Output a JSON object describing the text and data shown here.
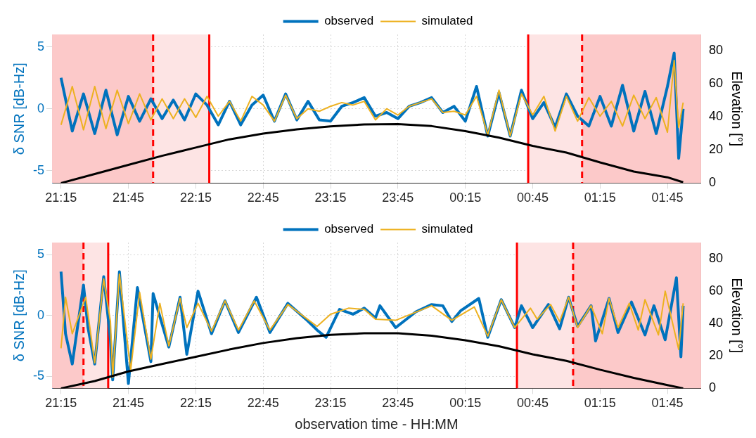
{
  "chart_data": [
    {
      "type": "line",
      "ylabel": "δ SNR [dB-Hz]",
      "y2label": "Elevation [°]",
      "x": [
        "--01-01T21:15",
        "--01-01T21:20",
        "--01-01T21:25",
        "--01-01T21:30",
        "--01-01T21:35",
        "--01-01T21:40",
        "--01-01T21:45",
        "--01-01T21:50",
        "--01-01T21:55",
        "--01-01T22:00",
        "--01-01T22:05",
        "--01-01T22:10",
        "--01-01T22:15",
        "--01-01T22:20",
        "--01-01T22:25",
        "--01-01T22:30",
        "--01-01T22:35",
        "--01-01T22:40",
        "--01-01T22:45",
        "--01-01T22:50",
        "--01-01T22:55",
        "--01-01T23:00",
        "--01-01T23:05",
        "--01-01T23:10",
        "--01-01T23:15",
        "--01-01T23:20",
        "--01-01T23:25",
        "--01-01T23:30",
        "--01-01T23:35",
        "--01-01T23:40",
        "--01-01T23:45",
        "--01-01T23:50",
        "--01-01T23:55",
        "--01-02T00:00",
        "--01-02T00:05",
        "--01-02T00:10",
        "--01-02T00:15",
        "--01-02T00:20",
        "--01-02T00:25",
        "--01-02T00:30",
        "--01-02T00:35",
        "--01-02T00:40",
        "--01-02T00:45",
        "--01-02T00:50",
        "--01-02T00:55",
        "--01-02T01:00",
        "--01-02T01:05",
        "--01-02T01:10",
        "--01-02T01:15",
        "--01-02T01:20",
        "--01-02T01:25",
        "--01-02T01:30",
        "--01-02T01:35",
        "--01-02T01:40",
        "--01-02T01:45",
        "--01-02T01:48",
        "--01-02T01:50",
        "--01-02T01:52"
      ],
      "series": [
        {
          "name": "observed",
          "color": "#0072bd",
          "values": [
            2.5,
            -1.8,
            1.2,
            -2.0,
            1.5,
            -2.1,
            1.0,
            -1.0,
            0.8,
            -0.8,
            0.7,
            -0.9,
            1.2,
            0.3,
            -1.3,
            0.6,
            -1.3,
            0.3,
            1.1,
            -1.0,
            1.2,
            -0.9,
            0.6,
            -0.9,
            -1.0,
            0.2,
            0.5,
            0.9,
            -0.6,
            -0.3,
            -0.8,
            0.2,
            0.5,
            0.9,
            -0.3,
            0.2,
            -1.0,
            1.8,
            -2.2,
            1.3,
            -2.2,
            1.5,
            -0.8,
            0.5,
            -1.5,
            1.2,
            -0.6,
            -1.4,
            1.0,
            -1.4,
            1.9,
            -1.8,
            1.4,
            -2.0,
            1.8,
            4.5,
            -4.0,
            0
          ]
        },
        {
          "name": "simulated",
          "color": "#edb120",
          "values": [
            -1.3,
            1.8,
            -1.7,
            1.8,
            -1.6,
            1.5,
            -1.2,
            1.2,
            -0.9,
            0.8,
            -0.8,
            0.8,
            -0.7,
            1.0,
            -0.6,
            0.6,
            -1.0,
            1.0,
            0.3,
            -1.0,
            1.1,
            -0.8,
            0,
            -0.2,
            0.2,
            0.5,
            0.3,
            0.6,
            -0.9,
            0,
            -0.5,
            0.2,
            0.5,
            0.8,
            -0.3,
            -0.2,
            -0.5,
            1.0,
            -2.1,
            1.5,
            -2.2,
            1.2,
            -0.5,
            1.0,
            -1.8,
            1.0,
            -1.0,
            0.9,
            -0.6,
            0.6,
            -1.4,
            1.1,
            -0.8,
            0.9,
            -1.9,
            3.9,
            -1.5,
            0.5
          ]
        },
        {
          "color": "#000000",
          "axis": "y2",
          "x": [
            "--01-01T21:15",
            "--01-01T21:30",
            "--01-01T21:45",
            "--01-01T22:00",
            "--01-01T22:15",
            "--01-01T22:30",
            "--01-01T22:45",
            "--01-01T23:00",
            "--01-01T23:15",
            "--01-01T23:30",
            "--01-01T23:45",
            "--01-02T00:00",
            "--01-02T00:15",
            "--01-02T00:30",
            "--01-02T00:45",
            "--01-02T01:00",
            "--01-02T01:15",
            "--01-02T01:30",
            "--01-02T01:45",
            "--01-02T01:52"
          ],
          "values": [
            0,
            5.5,
            11,
            16.5,
            21.5,
            26.5,
            30,
            32.5,
            34.3,
            35.5,
            35.7,
            34.5,
            31.5,
            27.5,
            22.5,
            18.5,
            12.5,
            7,
            3.5,
            0.5
          ]
        }
      ],
      "xlim": [
        "--01-01T21:11",
        "--01-02T02:00"
      ],
      "xticks": [
        {
          "value": "--01-01T21:15",
          "label": "21:15"
        },
        {
          "value": "--01-01T21:45",
          "label": "21:45"
        },
        {
          "value": "--01-01T22:15",
          "label": "22:15"
        },
        {
          "value": "--01-01T22:45",
          "label": "22:45"
        },
        {
          "value": "--01-01T23:15",
          "label": "23:15"
        },
        {
          "value": "--01-01T23:45",
          "label": "23:45"
        },
        {
          "value": "--01-02T00:15",
          "label": "00:15"
        },
        {
          "value": "--01-02T00:45",
          "label": "00:45"
        },
        {
          "value": "--01-02T01:15",
          "label": "01:15"
        },
        {
          "value": "--01-02T01:45",
          "label": "01:45"
        }
      ],
      "ylim": [
        -6,
        6
      ],
      "yticks": [
        -5,
        0,
        5
      ],
      "y2lim": [
        0,
        90
      ],
      "y2ticks": [
        0,
        20,
        40,
        60,
        80
      ],
      "grid": true,
      "legend": "top",
      "bands": [
        {
          "axis": "x",
          "from": "--01-01T21:11",
          "to": "--01-01T21:56",
          "color": "#fcc9c9"
        },
        {
          "axis": "x",
          "from": "--01-01T21:56",
          "to": "--01-01T22:21",
          "color": "#fde4e4"
        },
        {
          "axis": "x",
          "from": "--01-02T00:43",
          "to": "--01-02T01:07",
          "color": "#fde4e4"
        },
        {
          "axis": "x",
          "from": "--01-02T01:07",
          "to": "--01-02T02:00",
          "color": "#fcc9c9"
        }
      ],
      "ref_lines": [
        {
          "axis": "x",
          "value": "--01-01T21:56",
          "color": "#ff0000",
          "line_style": "dashed"
        },
        {
          "axis": "x",
          "value": "--01-01T22:21",
          "color": "#ff0000",
          "line_style": "solid"
        },
        {
          "axis": "x",
          "value": "--01-02T00:43",
          "color": "#ff0000",
          "line_style": "solid"
        },
        {
          "axis": "x",
          "value": "--01-02T01:07",
          "color": "#ff0000",
          "line_style": "dashed"
        }
      ]
    },
    {
      "type": "line",
      "ylabel": "δ SNR [dB-Hz]",
      "y2label": "Elevation [°]",
      "xlabel": "observation time - HH:MM",
      "series": [
        {
          "name": "observed",
          "color": "#0072bd",
          "x": [
            "--01-01T21:15",
            "--01-01T21:17",
            "--01-01T21:20",
            "--01-01T21:25",
            "--01-01T21:27",
            "--01-01T21:30",
            "--01-01T21:34",
            "--01-01T21:37",
            "--01-01T21:38",
            "--01-01T21:41",
            "--01-01T21:45",
            "--01-01T21:49",
            "--01-01T21:55",
            "--01-01T21:56",
            "--01-01T22:03",
            "--01-01T22:08",
            "--01-01T22:11",
            "--01-01T22:16",
            "--01-01T22:22",
            "--01-01T22:28",
            "--01-01T22:34",
            "--01-01T22:42",
            "--01-01T22:48",
            "--01-01T22:56",
            "--01-01T23:04",
            "--01-01T23:09",
            "--01-01T23:13",
            "--01-01T23:19",
            "--01-01T23:25",
            "--01-01T23:30",
            "--01-01T23:35",
            "--01-01T23:37",
            "--01-01T23:44",
            "--01-01T23:53",
            "--01-02T00:00",
            "--01-02T00:05",
            "--01-02T00:09",
            "--01-02T00:13",
            "--01-02T00:21",
            "--01-02T00:25",
            "--01-02T00:31",
            "--01-02T00:37",
            "--01-02T00:40",
            "--01-02T00:45",
            "--01-02T00:52",
            "--01-02T00:57",
            "--01-02T01:01",
            "--01-02T01:05",
            "--01-02T01:11",
            "--01-02T01:13",
            "--01-02T01:19",
            "--01-02T01:23",
            "--01-02T01:29",
            "--01-02T01:35",
            "--01-02T01:39",
            "--01-02T01:44",
            "--01-02T01:49",
            "--01-02T01:51",
            "--01-02T01:52"
          ],
          "values": [
            3.6,
            -1.5,
            -4.0,
            2.5,
            -1.0,
            -4.0,
            3.2,
            -2.0,
            -5.3,
            3.6,
            -5.6,
            2.3,
            -3.8,
            1.8,
            -2.6,
            1.5,
            -3.2,
            2.0,
            -1.5,
            1.2,
            -1.4,
            1.5,
            -1.4,
            1.0,
            -0.3,
            -1.2,
            -1.8,
            0.5,
            0.1,
            0.6,
            -0.2,
            0.8,
            -1.0,
            0.3,
            0.9,
            0.8,
            -0.5,
            0.4,
            1.4,
            -1.8,
            1.3,
            -1.0,
            0.8,
            -1.0,
            0.9,
            -1.1,
            1.5,
            -0.9,
            0.8,
            -2.1,
            1.4,
            -1.4,
            1.1,
            -1.6,
            0.8,
            -2.0,
            3.1,
            -3.4,
            0.8
          ]
        },
        {
          "name": "simulated",
          "color": "#edb120",
          "x": [
            "--01-01T21:15",
            "--01-01T21:17",
            "--01-01T21:20",
            "--01-01T21:26",
            "--01-01T21:30",
            "--01-01T21:34",
            "--01-01T21:37",
            "--01-01T21:38",
            "--01-01T21:41",
            "--01-01T21:46",
            "--01-01T21:50",
            "--01-01T21:55",
            "--01-01T21:59",
            "--01-01T22:03",
            "--01-01T22:08",
            "--01-01T22:11",
            "--01-01T22:16",
            "--01-01T22:22",
            "--01-01T22:28",
            "--01-01T22:34",
            "--01-01T22:41",
            "--01-01T22:48",
            "--01-01T22:56",
            "--01-01T23:09",
            "--01-01T23:15",
            "--01-01T23:23",
            "--01-01T23:30",
            "--01-01T23:35",
            "--01-01T23:44",
            "--01-02T00:00",
            "--01-02T00:09",
            "--01-02T00:19",
            "--01-02T00:25",
            "--01-02T00:31",
            "--01-02T00:37",
            "--01-02T00:44",
            "--01-02T00:47",
            "--01-02T00:53",
            "--01-02T00:57",
            "--01-02T01:01",
            "--01-02T01:05",
            "--01-02T01:11",
            "--01-02T01:16",
            "--01-02T01:19",
            "--01-02T01:23",
            "--01-02T01:28",
            "--01-02T01:32",
            "--01-02T01:35",
            "--01-02T01:41",
            "--01-02T01:44",
            "--01-02T01:50",
            "--01-02T01:52"
          ],
          "values": [
            -2.7,
            1.5,
            -1.5,
            1.5,
            -3.9,
            3.0,
            -0.5,
            -5.1,
            3.4,
            -4.5,
            1.9,
            -3.6,
            1.0,
            -2.5,
            1.4,
            -1.0,
            1.0,
            -1.3,
            1.2,
            -1.2,
            1.2,
            -1.2,
            0.9,
            -0.9,
            0.1,
            0.6,
            0.5,
            -0.3,
            -0.4,
            0.8,
            -0.4,
            0.7,
            -1.7,
            1.3,
            -1.0,
            0.6,
            -0.3,
            0.9,
            -0.5,
            1.5,
            -1.0,
            0.8,
            -1.5,
            1.4,
            -1.0,
            1.0,
            -1.2,
            1.3,
            -1.6,
            2.0,
            -2.8,
            1.0
          ]
        },
        {
          "color": "#000000",
          "axis": "y2",
          "x": [
            "--01-01T21:15",
            "--01-01T21:30",
            "--01-01T21:45",
            "--01-01T22:00",
            "--01-01T22:15",
            "--01-01T22:30",
            "--01-01T22:45",
            "--01-01T23:00",
            "--01-01T23:15",
            "--01-01T23:30",
            "--01-01T23:45",
            "--01-02T00:00",
            "--01-02T00:15",
            "--01-02T00:30",
            "--01-02T00:45",
            "--01-02T01:00",
            "--01-02T01:15",
            "--01-02T01:30",
            "--01-02T01:45",
            "--01-02T01:52"
          ],
          "values": [
            0,
            4.5,
            10.5,
            15,
            19.5,
            24,
            28,
            31,
            33,
            34,
            34,
            32.5,
            29.7,
            26,
            21,
            17,
            11.5,
            6.5,
            2,
            0
          ]
        }
      ],
      "xlim": [
        "--01-01T21:11",
        "--01-02T02:00"
      ],
      "xticks": [
        {
          "value": "--01-01T21:15",
          "label": "21:15"
        },
        {
          "value": "--01-01T21:45",
          "label": "21:45"
        },
        {
          "value": "--01-01T22:15",
          "label": "22:15"
        },
        {
          "value": "--01-01T22:45",
          "label": "22:45"
        },
        {
          "value": "--01-01T23:15",
          "label": "23:15"
        },
        {
          "value": "--01-01T23:45",
          "label": "23:45"
        },
        {
          "value": "--01-02T00:15",
          "label": "00:15"
        },
        {
          "value": "--01-02T00:45",
          "label": "00:45"
        },
        {
          "value": "--01-02T01:15",
          "label": "01:15"
        },
        {
          "value": "--01-02T01:45",
          "label": "01:45"
        }
      ],
      "ylim": [
        -6,
        6
      ],
      "yticks": [
        -5,
        0,
        5
      ],
      "y2lim": [
        0,
        90
      ],
      "y2ticks": [
        0,
        20,
        40,
        60,
        80
      ],
      "grid": true,
      "legend": "top",
      "bands": [
        {
          "axis": "x",
          "from": "--01-01T21:11",
          "to": "--01-01T21:25",
          "color": "#fcc9c9"
        },
        {
          "axis": "x",
          "from": "--01-01T21:25",
          "to": "--01-01T21:36",
          "color": "#fde4e4"
        },
        {
          "axis": "x",
          "from": "--01-02T00:38",
          "to": "--01-02T01:03",
          "color": "#fde4e4"
        },
        {
          "axis": "x",
          "from": "--01-02T01:03",
          "to": "--01-02T02:00",
          "color": "#fcc9c9"
        }
      ],
      "ref_lines": [
        {
          "axis": "x",
          "value": "--01-01T21:25",
          "color": "#ff0000",
          "line_style": "dashed"
        },
        {
          "axis": "x",
          "value": "--01-01T21:36",
          "color": "#ff0000",
          "line_style": "solid"
        },
        {
          "axis": "x",
          "value": "--01-02T00:38",
          "color": "#ff0000",
          "line_style": "solid"
        },
        {
          "axis": "x",
          "value": "--01-02T01:03",
          "color": "#ff0000",
          "line_style": "dashed"
        }
      ]
    }
  ]
}
